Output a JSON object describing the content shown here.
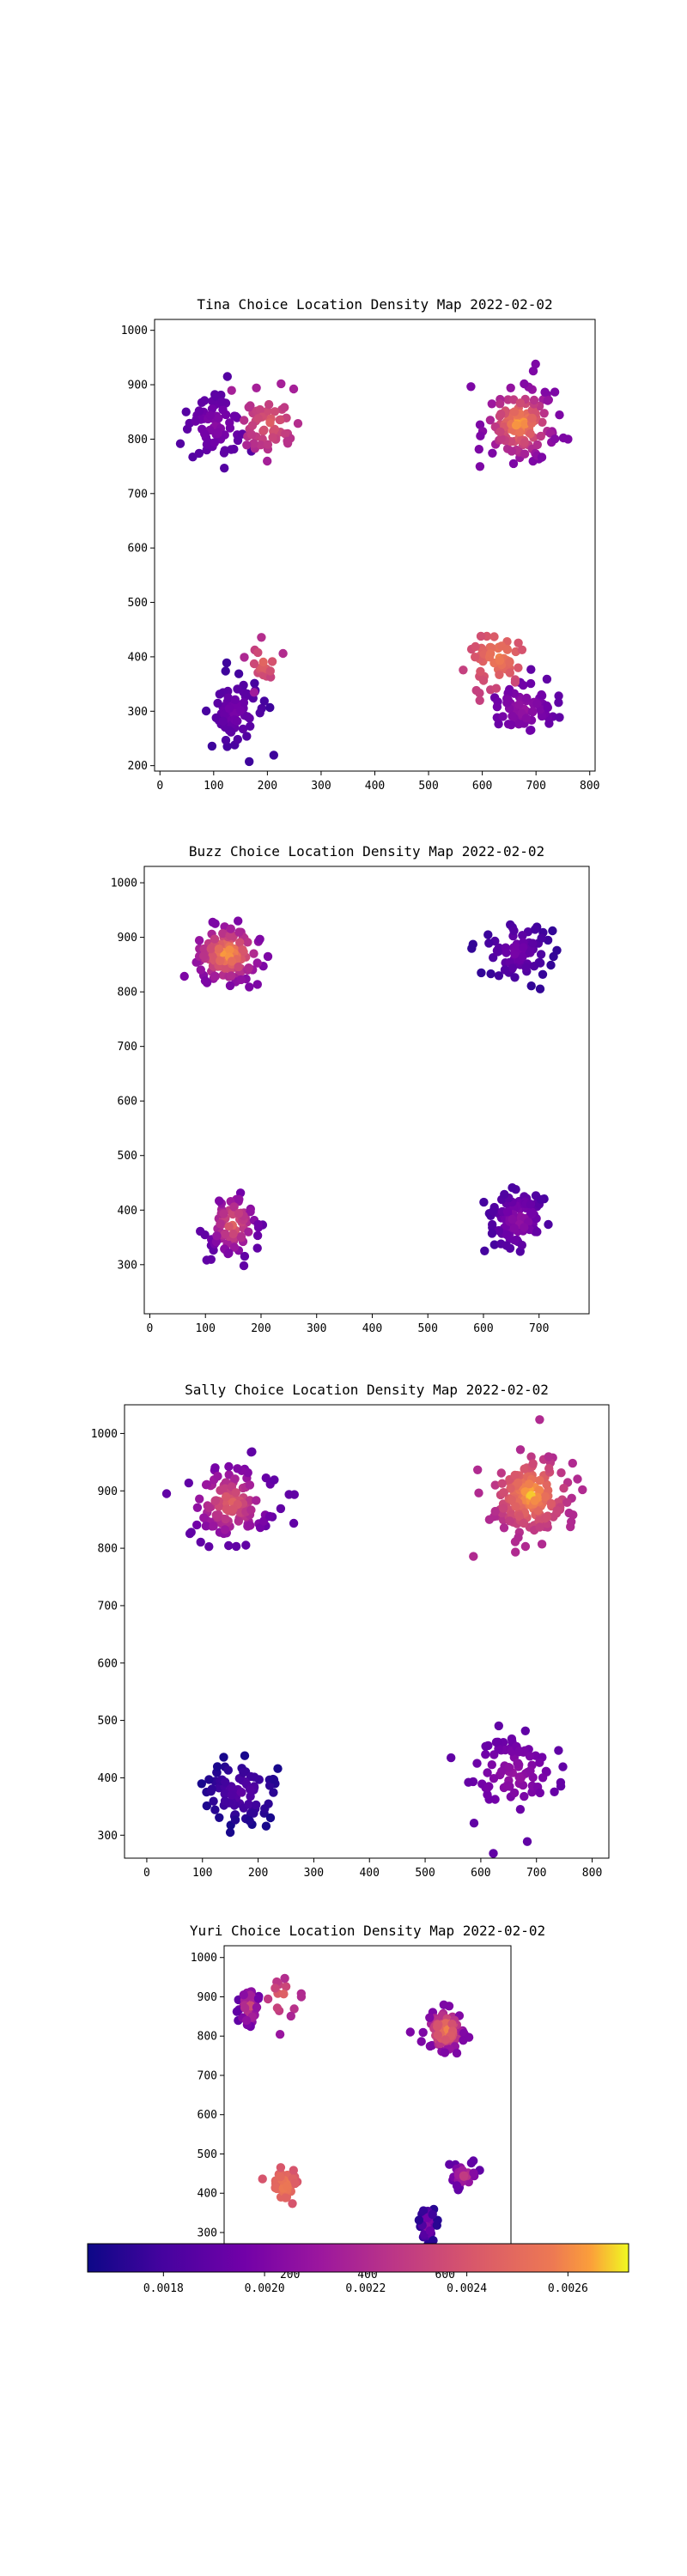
{
  "chart_data": [
    {
      "type": "scatter",
      "title": "Tina Choice Location Density Map 2022-02-02",
      "xlim": [
        -10,
        810
      ],
      "ylim": [
        190,
        1020
      ],
      "xticks": [
        0,
        100,
        200,
        300,
        400,
        500,
        600,
        700,
        800
      ],
      "yticks": [
        200,
        300,
        400,
        500,
        600,
        700,
        800,
        900,
        1000
      ],
      "clusters": [
        {
          "cx": 105,
          "cy": 825,
          "sx": 40,
          "sy": 40,
          "n": 65,
          "d": [
            0.00185,
            0.00205
          ]
        },
        {
          "cx": 205,
          "cy": 830,
          "sx": 40,
          "sy": 40,
          "n": 55,
          "d": [
            0.00215,
            0.00245
          ]
        },
        {
          "cx": 670,
          "cy": 830,
          "sx": 45,
          "sy": 45,
          "n": 140,
          "d": [
            0.002,
            0.0027
          ]
        },
        {
          "cx": 140,
          "cy": 300,
          "sx": 38,
          "sy": 45,
          "n": 75,
          "d": [
            0.00178,
            0.002
          ]
        },
        {
          "cx": 195,
          "cy": 390,
          "sx": 30,
          "sy": 40,
          "n": 20,
          "d": [
            0.0021,
            0.0025
          ]
        },
        {
          "cx": 675,
          "cy": 305,
          "sx": 40,
          "sy": 35,
          "n": 70,
          "d": [
            0.0019,
            0.0021
          ]
        },
        {
          "cx": 630,
          "cy": 400,
          "sx": 40,
          "sy": 40,
          "n": 55,
          "d": [
            0.0023,
            0.0026
          ]
        }
      ]
    },
    {
      "type": "scatter",
      "title": "Buzz Choice Location Density Map 2022-02-02",
      "xlim": [
        -10,
        790
      ],
      "ylim": [
        210,
        1030
      ],
      "xticks": [
        0,
        100,
        200,
        300,
        400,
        500,
        600,
        700
      ],
      "yticks": [
        300,
        400,
        500,
        600,
        700,
        800,
        900,
        1000
      ],
      "clusters": [
        {
          "cx": 140,
          "cy": 870,
          "sx": 40,
          "sy": 35,
          "n": 140,
          "d": [
            0.002,
            0.0027
          ]
        },
        {
          "cx": 660,
          "cy": 875,
          "sx": 40,
          "sy": 40,
          "n": 75,
          "d": [
            0.00175,
            0.002
          ]
        },
        {
          "cx": 150,
          "cy": 375,
          "sx": 30,
          "sy": 40,
          "n": 80,
          "d": [
            0.0019,
            0.0025
          ]
        },
        {
          "cx": 665,
          "cy": 380,
          "sx": 35,
          "sy": 40,
          "n": 100,
          "d": [
            0.0018,
            0.0021
          ]
        }
      ]
    },
    {
      "type": "scatter",
      "title": "Sally Choice Location Density Map 2022-02-02",
      "xlim": [
        -40,
        830
      ],
      "ylim": [
        260,
        1050
      ],
      "xticks": [
        0,
        100,
        200,
        300,
        400,
        500,
        600,
        700,
        800
      ],
      "yticks": [
        300,
        400,
        500,
        600,
        700,
        800,
        900,
        1000
      ],
      "clusters": [
        {
          "cx": 150,
          "cy": 880,
          "sx": 50,
          "sy": 45,
          "n": 130,
          "d": [
            0.0019,
            0.0025
          ]
        },
        {
          "cx": 690,
          "cy": 895,
          "sx": 45,
          "sy": 45,
          "n": 170,
          "d": [
            0.0022,
            0.0027
          ]
        },
        {
          "cx": 170,
          "cy": 375,
          "sx": 45,
          "sy": 35,
          "n": 85,
          "d": [
            0.00168,
            0.0019
          ]
        },
        {
          "cx": 660,
          "cy": 405,
          "sx": 55,
          "sy": 45,
          "n": 85,
          "d": [
            0.0019,
            0.0021
          ]
        }
      ]
    },
    {
      "type": "scatter",
      "title": "Yuri Choice Location Density Map 2022-02-02",
      "xlim": [
        30,
        770
      ],
      "ylim": [
        230,
        1030
      ],
      "xticks": [
        200,
        400,
        600
      ],
      "yticks": [
        300,
        400,
        500,
        600,
        700,
        800,
        900,
        1000
      ],
      "clusters": [
        {
          "cx": 95,
          "cy": 875,
          "sx": 18,
          "sy": 35,
          "n": 45,
          "d": [
            0.0019,
            0.0024
          ]
        },
        {
          "cx": 180,
          "cy": 900,
          "sx": 40,
          "sy": 40,
          "n": 15,
          "d": [
            0.0021,
            0.0025
          ]
        },
        {
          "cx": 600,
          "cy": 815,
          "sx": 30,
          "sy": 35,
          "n": 90,
          "d": [
            0.002,
            0.0027
          ]
        },
        {
          "cx": 185,
          "cy": 420,
          "sx": 22,
          "sy": 30,
          "n": 50,
          "d": [
            0.0024,
            0.0026
          ]
        },
        {
          "cx": 555,
          "cy": 320,
          "sx": 12,
          "sy": 30,
          "n": 45,
          "d": [
            0.00172,
            0.0021
          ]
        },
        {
          "cx": 650,
          "cy": 445,
          "sx": 22,
          "sy": 22,
          "n": 40,
          "d": [
            0.0019,
            0.0023
          ]
        }
      ]
    }
  ],
  "colorbar": {
    "colormap": "plasma",
    "range": [
      0.00165,
      0.00272
    ],
    "ticks": [
      0.0018,
      0.002,
      0.0022,
      0.0024,
      0.0026
    ],
    "tick_labels": [
      "0.0018",
      "0.0020",
      "0.0022",
      "0.0024",
      "0.0026"
    ]
  }
}
